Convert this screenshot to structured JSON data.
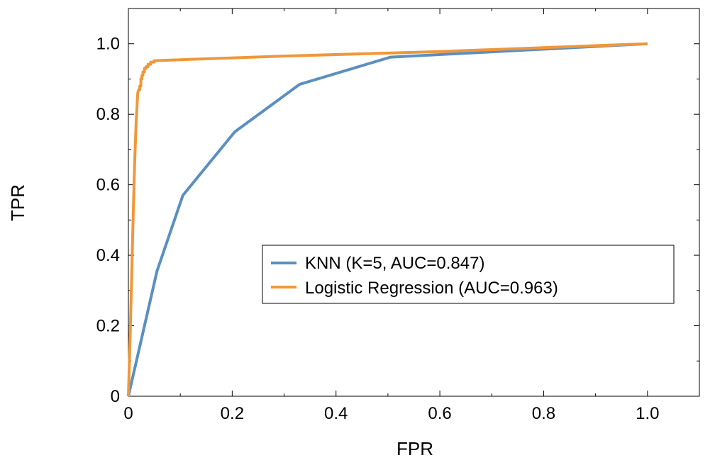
{
  "chart_data": {
    "type": "line",
    "title": "",
    "xlabel": "FPR",
    "ylabel": "TPR",
    "xlim": [
      0,
      1.1
    ],
    "ylim": [
      0,
      1.1
    ],
    "xticks": [
      0,
      0.2,
      0.4,
      0.6,
      0.8,
      1.0
    ],
    "xtick_labels": [
      "0",
      "0.2",
      "0.4",
      "0.6",
      "0.8",
      "1.0"
    ],
    "yticks": [
      0,
      0.2,
      0.4,
      0.6,
      0.8,
      1.0
    ],
    "ytick_labels": [
      "0",
      "0.2",
      "0.4",
      "0.6",
      "0.8",
      "1.0"
    ],
    "grid": false,
    "legend_position": "center-right",
    "series": [
      {
        "name": "KNN (K=5, AUC=0.847)",
        "color": "#5b8fc0",
        "x": [
          0,
          0.055,
          0.105,
          0.205,
          0.33,
          0.505,
          1.0
        ],
        "y": [
          0,
          0.355,
          0.57,
          0.75,
          0.885,
          0.962,
          1.0
        ]
      },
      {
        "name": "Logistic Regression (AUC=0.963)",
        "color": "#f0973a",
        "x": [
          0,
          0.003,
          0.006,
          0.009,
          0.012,
          0.015,
          0.018,
          0.02,
          0.022,
          0.022,
          0.024,
          0.024,
          0.026,
          0.026,
          0.028,
          0.028,
          0.031,
          0.031,
          0.034,
          0.034,
          0.038,
          0.038,
          0.043,
          0.043,
          0.05,
          0.05,
          0.3,
          0.6,
          1.0
        ],
        "y": [
          0,
          0.15,
          0.32,
          0.5,
          0.66,
          0.78,
          0.86,
          0.87,
          0.87,
          0.88,
          0.88,
          0.9,
          0.9,
          0.91,
          0.91,
          0.92,
          0.92,
          0.93,
          0.93,
          0.935,
          0.935,
          0.942,
          0.942,
          0.948,
          0.948,
          0.952,
          0.965,
          0.978,
          1.0
        ]
      }
    ]
  }
}
